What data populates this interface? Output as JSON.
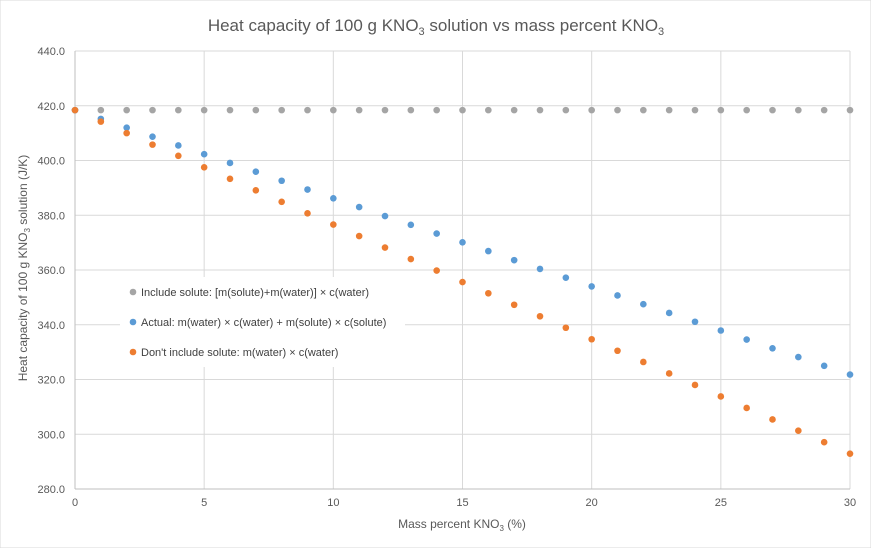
{
  "chart_data": {
    "type": "scatter",
    "title": "Heat capacity of 100 g KNO₃ solution vs mass percent KNO₃",
    "title_parts": {
      "main": "Heat capacity of 100 g KNO",
      "sub1": "3",
      "mid": " solution vs mass percent KNO",
      "sub2": "3"
    },
    "xlabel": "Mass percent KNO₃ (%)",
    "xlabel_parts": {
      "main": "Mass percent KNO",
      "sub": "3",
      "tail": " (%)"
    },
    "ylabel": "Heat capacity of 100 g KNO₃ solution (J/K)",
    "ylabel_parts": {
      "main": "Heat capacity of 100 g KNO",
      "sub": "3",
      "tail": " solution (J/K)"
    },
    "xlim": [
      0,
      30
    ],
    "ylim": [
      280,
      440
    ],
    "x_ticks": [
      0,
      5,
      10,
      15,
      20,
      25,
      30
    ],
    "x_tick_labels": [
      "0",
      "5",
      "10",
      "15",
      "20",
      "25",
      "30"
    ],
    "y_ticks": [
      280,
      300,
      320,
      340,
      360,
      380,
      400,
      420,
      440
    ],
    "y_tick_labels": [
      "280.0",
      "300.0",
      "320.0",
      "340.0",
      "360.0",
      "380.0",
      "400.0",
      "420.0",
      "440.0"
    ],
    "grid": true,
    "legend_position": "left-middle",
    "x": [
      0,
      1,
      2,
      3,
      4,
      5,
      6,
      7,
      8,
      9,
      10,
      11,
      12,
      13,
      14,
      15,
      16,
      17,
      18,
      19,
      20,
      21,
      22,
      23,
      24,
      25,
      26,
      27,
      28,
      29,
      30
    ],
    "series": [
      {
        "name": "Include solute: [m(solute)+m(water)] × c(water)",
        "color": "#a5a5a5",
        "values": [
          418.4,
          418.4,
          418.4,
          418.4,
          418.4,
          418.4,
          418.4,
          418.4,
          418.4,
          418.4,
          418.4,
          418.4,
          418.4,
          418.4,
          418.4,
          418.4,
          418.4,
          418.4,
          418.4,
          418.4,
          418.4,
          418.4,
          418.4,
          418.4,
          418.4,
          418.4,
          418.4,
          418.4,
          418.4,
          418.4,
          418.4
        ]
      },
      {
        "name": "Actual: m(water) × c(water) + m(solute) × c(solute)",
        "color": "#5b9bd5",
        "values": [
          418.4,
          415.2,
          412.0,
          408.7,
          405.5,
          402.3,
          399.1,
          395.9,
          392.6,
          389.4,
          386.2,
          383.0,
          379.7,
          376.5,
          373.3,
          370.1,
          366.9,
          363.6,
          360.4,
          357.2,
          354.0,
          350.7,
          347.5,
          344.3,
          341.1,
          337.9,
          334.6,
          331.4,
          328.2,
          325.0,
          321.8
        ]
      },
      {
        "name": "Don't include solute: m(water) × c(water)",
        "color": "#ed7d31",
        "values": [
          418.4,
          414.2,
          410.0,
          405.8,
          401.7,
          397.5,
          393.3,
          389.1,
          384.9,
          380.7,
          376.6,
          372.4,
          368.2,
          364.0,
          359.8,
          355.6,
          351.5,
          347.3,
          343.1,
          338.9,
          334.7,
          330.5,
          326.4,
          322.2,
          318.0,
          313.8,
          309.6,
          305.4,
          301.3,
          297.1,
          292.9
        ]
      }
    ]
  }
}
